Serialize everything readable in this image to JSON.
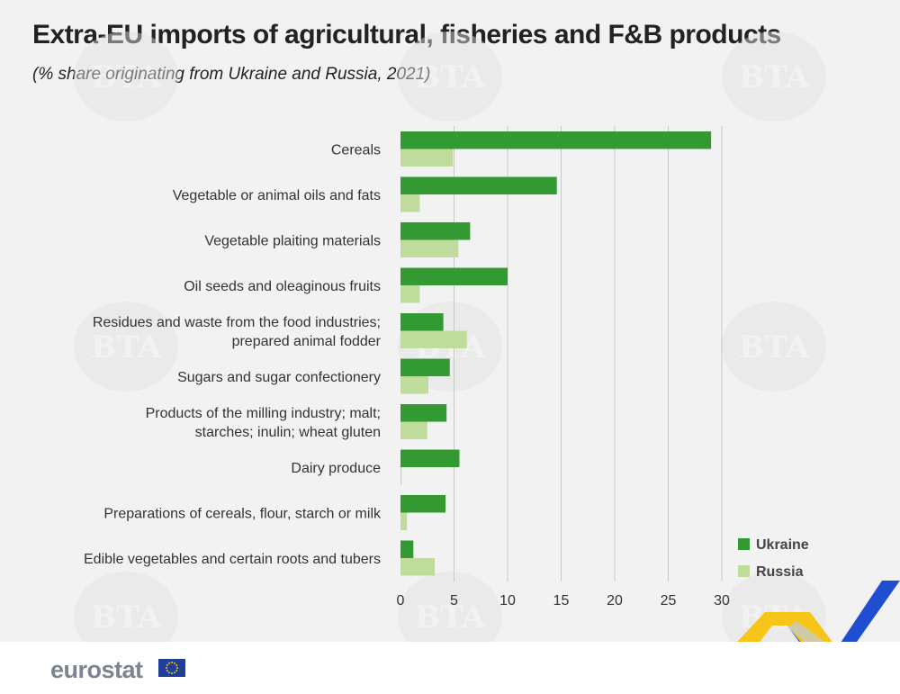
{
  "title": "Extra-EU imports of agricultural, fisheries and F&B products",
  "subtitle": "(% share originating from Ukraine and Russia, 2021)",
  "logo": "eurostat",
  "watermark_text": "BTA",
  "colors": {
    "ukraine": "#339933",
    "russia": "#bfdc9c",
    "grid": "#c8c8c8",
    "text": "#333333"
  },
  "chart_data": {
    "type": "bar",
    "orientation": "horizontal",
    "title": "Extra-EU imports of agricultural, fisheries and F&B products",
    "subtitle": "(% share originating from Ukraine and Russia, 2021)",
    "categories": [
      [
        "Cereals"
      ],
      [
        "Vegetable or animal oils and fats"
      ],
      [
        "Vegetable plaiting materials"
      ],
      [
        "Oil seeds and oleaginous fruits"
      ],
      [
        "Residues and waste from the food industries;",
        "prepared animal fodder"
      ],
      [
        "Sugars and sugar confectionery"
      ],
      [
        "Products of the milling industry; malt;",
        "starches; inulin; wheat gluten"
      ],
      [
        "Dairy produce"
      ],
      [
        "Preparations of cereals, flour, starch or milk"
      ],
      [
        "Edible vegetables and certain roots and tubers"
      ]
    ],
    "series": [
      {
        "name": "Ukraine",
        "values": [
          29.0,
          14.6,
          6.5,
          10.0,
          4.0,
          4.6,
          4.3,
          5.5,
          4.2,
          1.2
        ]
      },
      {
        "name": "Russia",
        "values": [
          4.9,
          1.8,
          5.4,
          1.8,
          6.2,
          2.6,
          2.5,
          0.1,
          0.6,
          3.2
        ]
      }
    ],
    "xlim": [
      0,
      30
    ],
    "xticks": [
      0,
      5,
      10,
      15,
      20,
      25,
      30
    ],
    "xlabel": "",
    "ylabel": "",
    "grid": true,
    "legend_position": "bottom-right"
  }
}
